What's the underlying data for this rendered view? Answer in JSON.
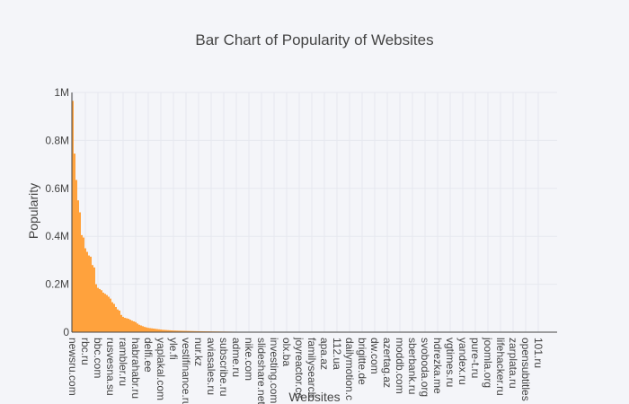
{
  "chart_data": {
    "type": "bar",
    "title": "Bar Chart of Popularity of Websites",
    "xlabel": "Websites",
    "ylabel": "Popularity",
    "ylim": [
      0,
      1000000
    ],
    "yticks": [
      0,
      200000,
      400000,
      600000,
      800000,
      1000000
    ],
    "ytick_labels": [
      "0",
      "0.2M",
      "0.4M",
      "0.6M",
      "0.8M",
      "1M"
    ],
    "grid": true,
    "bar_color": "#ffa23d",
    "visible_category_labels": [
      "newsru.com",
      "rbc.ru",
      "bbc.com",
      "rusvesna.su",
      "rambler.ru",
      "habrahabr.ru",
      "delfi.ee",
      "yaplakal.com",
      "yle.fi",
      "vestifinance.ru",
      "nur.kz",
      "aviasales.ru",
      "subscribe.ru",
      "adme.ru",
      "nike.com",
      "slideshare.net",
      "investing.com",
      "olx.ba",
      "joyreactor.cc",
      "familysearch",
      "apa.az",
      "112.ua",
      "dailymotion.c",
      "brigitte.de",
      "dw.com",
      "azertag.az",
      "moddb.com",
      "sberbank.ru",
      "svoboda.org",
      "hdrezka.me",
      "vgtimes.ru",
      "yandex.ru",
      "pure-t.ru",
      "joomla.org",
      "lifehacker.ru",
      "zarplata.ru",
      "opensubtitles",
      "101.ru"
    ],
    "values": [
      965000,
      745000,
      635000,
      550000,
      500000,
      405000,
      395000,
      350000,
      335000,
      320000,
      315000,
      280000,
      270000,
      200000,
      185000,
      180000,
      175000,
      165000,
      160000,
      155000,
      148000,
      140000,
      125000,
      118000,
      105000,
      95000,
      90000,
      72000,
      64000,
      60000,
      58000,
      56000,
      52000,
      48000,
      45000,
      42000,
      36000,
      31000,
      28000,
      25000,
      22000,
      20000,
      18000,
      17000,
      16000,
      15000,
      14000,
      13000,
      12000,
      11000,
      10000,
      9500,
      9000,
      8500,
      8000,
      7500,
      7000,
      6800,
      6500,
      6200,
      6000,
      5800,
      5600,
      5400,
      5200,
      5000,
      4800,
      4600,
      4400,
      4200,
      4000,
      3900,
      3800,
      3700,
      3600,
      3500,
      3400,
      3300,
      3200,
      3100,
      3000,
      2900,
      2800,
      2700,
      2600,
      2500,
      2400,
      2300,
      2200,
      2100,
      2000,
      1900,
      1800,
      1700,
      1600,
      1500,
      1400,
      1300,
      1200,
      1100,
      1000,
      950,
      900,
      850,
      800,
      750,
      700,
      650,
      600,
      550,
      500,
      480,
      460,
      440,
      420,
      400,
      380,
      360,
      340,
      320,
      300,
      290,
      280,
      270,
      260,
      250,
      240,
      230,
      220,
      210,
      200,
      190,
      180,
      170,
      160,
      150,
      140,
      130,
      120,
      110,
      100,
      95,
      90,
      85,
      80,
      75,
      70,
      65,
      60,
      55,
      50,
      48,
      46,
      44,
      42,
      40,
      38,
      36,
      34,
      32,
      30,
      28,
      26,
      24,
      22,
      20,
      18,
      16,
      14,
      12,
      10,
      9,
      8,
      7,
      6,
      5,
      5,
      4,
      4,
      3,
      3,
      3,
      2,
      2,
      2,
      2,
      1,
      1,
      1,
      1,
      1,
      1,
      1,
      1,
      1,
      1,
      1,
      1,
      1,
      1,
      1,
      1,
      1,
      1,
      1,
      1,
      1,
      1,
      1,
      1,
      1,
      1,
      1,
      1,
      1,
      1,
      1,
      1,
      1,
      1,
      1,
      1,
      1,
      1,
      1,
      1,
      1,
      1,
      1,
      1,
      1,
      1,
      1,
      1,
      1,
      1,
      1,
      1,
      1,
      1,
      1,
      1,
      1,
      1,
      1,
      1,
      1,
      1,
      1,
      1,
      1,
      1,
      1,
      1,
      1,
      1,
      1,
      1,
      1,
      1,
      1,
      1,
      1,
      1,
      1,
      1,
      1,
      1,
      1,
      1
    ]
  }
}
